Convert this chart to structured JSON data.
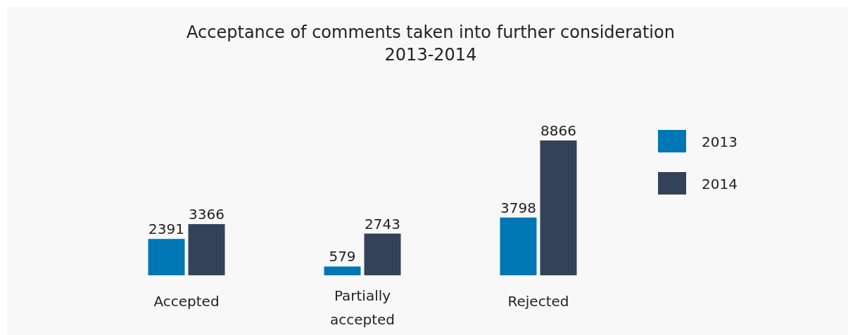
{
  "chart_data": {
    "type": "bar",
    "title": "Acceptance of comments taken into further consideration",
    "subtitle": "2013-2014",
    "categories": [
      "Accepted",
      "Partially accepted",
      "Rejected"
    ],
    "series": [
      {
        "name": "2013",
        "color": "#0077b5",
        "values": [
          2391,
          579,
          3798
        ]
      },
      {
        "name": "2014",
        "color": "#344259",
        "values": [
          3366,
          2743,
          8866
        ]
      }
    ],
    "data_labels": true,
    "legend": "right"
  }
}
